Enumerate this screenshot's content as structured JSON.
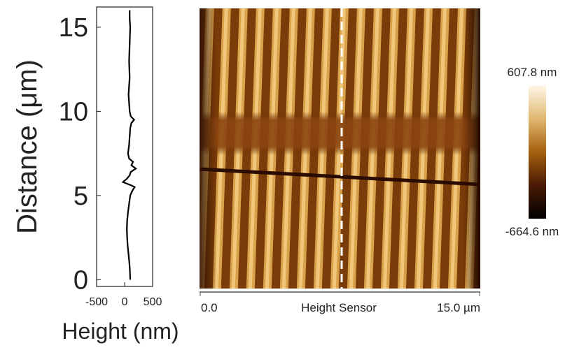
{
  "chart_data": {
    "type": "line",
    "orientation": "horizontal",
    "xlabel": "Height (nm)",
    "ylabel": "Distance (μm)",
    "x": [
      0,
      0.5,
      1,
      1.5,
      2,
      2.5,
      3,
      3.5,
      4,
      4.5,
      5,
      5.3,
      5.5,
      5.6,
      5.8,
      6.0,
      6.2,
      6.4,
      6.6,
      6.8,
      7.0,
      7.2,
      7.5,
      8,
      8.5,
      9,
      9.3,
      9.5,
      9.7,
      10,
      10.5,
      11,
      11.5,
      12,
      12.5,
      13,
      13.5,
      14,
      14.5,
      15,
      15.5,
      16
    ],
    "values": [
      100,
      95,
      85,
      70,
      55,
      45,
      40,
      45,
      60,
      80,
      100,
      140,
      180,
      120,
      -30,
      40,
      90,
      110,
      200,
      120,
      150,
      80,
      60,
      80,
      90,
      100,
      120,
      170,
      110,
      90,
      80,
      70,
      80,
      90,
      85,
      80,
      85,
      90,
      95,
      100,
      90,
      90
    ],
    "color": "#000000",
    "xlim": [
      -500,
      500
    ],
    "xticks": [
      -500,
      0,
      500
    ],
    "ylim": [
      -0.4,
      16.2
    ],
    "yticks": [
      0,
      5,
      10,
      15
    ]
  },
  "afm_image": {
    "colorbar_max": "607.8 nm",
    "colorbar_min": "-664.6 nm",
    "axis_start": "0.0",
    "axis_title": "Height Sensor",
    "axis_end": "15.0 µm"
  }
}
